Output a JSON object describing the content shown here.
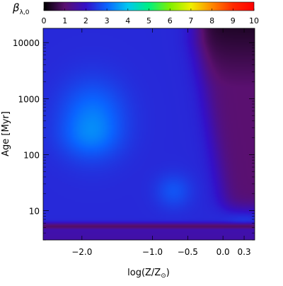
{
  "chart_data": {
    "type": "heatmap",
    "colorbar": {
      "label_symbol": "β",
      "label_subscript": "λ,0",
      "min": 0,
      "max": 10,
      "ticks": [
        "0",
        "1",
        "2",
        "3",
        "4",
        "5",
        "6",
        "7",
        "8",
        "9",
        "10"
      ],
      "colormap": [
        "#000000",
        "#5a1070",
        "#3410c8",
        "#0a64ff",
        "#00c8f0",
        "#00f080",
        "#80f000",
        "#f0f000",
        "#ff8800",
        "#ff2a00",
        "#ff0000"
      ]
    },
    "x_axis": {
      "label_text": "log(Z/Z",
      "label_symbol": "⊙",
      "label_close": ")",
      "range": [
        -2.55,
        0.45
      ],
      "ticks": [
        {
          "value": -2.0,
          "label": "−2.0"
        },
        {
          "value": -1.0,
          "label": "−1.0"
        },
        {
          "value": -0.5,
          "label": "−0.5"
        },
        {
          "value": 0.0,
          "label": "0.0"
        },
        {
          "value": 0.3,
          "label": "0.3"
        }
      ]
    },
    "y_axis": {
      "label": "Age [Myr]",
      "scale": "log",
      "range": [
        3,
        18000
      ],
      "ticks": [
        {
          "value": 10,
          "label": "10"
        },
        {
          "value": 100,
          "label": "100"
        },
        {
          "value": 1000,
          "label": "1000"
        },
        {
          "value": 10000,
          "label": "10000"
        }
      ]
    },
    "field": {
      "background_value": 2.3,
      "blobs": [
        {
          "x": -1.85,
          "logy": 2.65,
          "sx": 0.45,
          "sy": 0.65,
          "amp": 0.9
        },
        {
          "x": -1.9,
          "logy": 2.3,
          "sx": 0.4,
          "sy": 0.35,
          "amp": 0.35
        },
        {
          "x": -0.7,
          "logy": 1.35,
          "sx": 0.25,
          "sy": 0.3,
          "amp": 0.5
        },
        {
          "x": 0.3,
          "logy": 0.8,
          "sx": 0.25,
          "sy": 0.2,
          "amp": 0.25
        }
      ],
      "dark_region": {
        "value": 1.0,
        "x_edge_high_age": -0.35,
        "x_edge_low_age": 0.05
      },
      "low_age_band": {
        "logy_center": 0.72,
        "width": 0.06,
        "value": 0.9
      }
    }
  }
}
